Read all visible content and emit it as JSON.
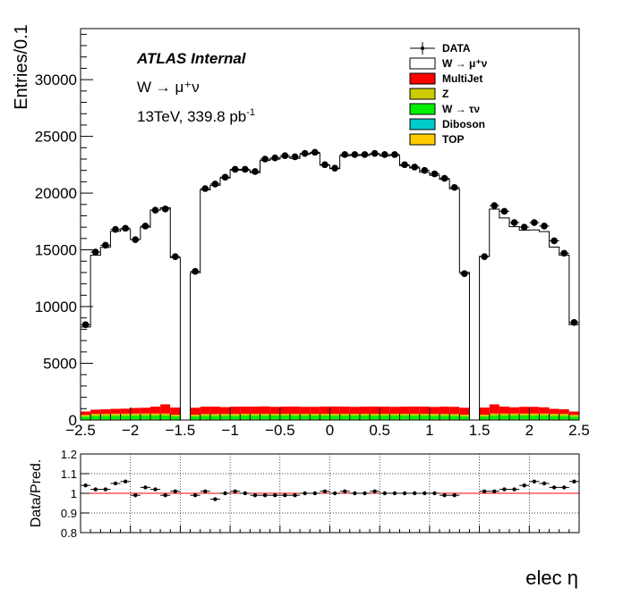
{
  "chart_data": [
    {
      "type": "bar",
      "stacked": true,
      "title": "",
      "xlabel": "elec η",
      "ylabel": "Entries/0.1",
      "xlim": [
        -2.5,
        2.5
      ],
      "ylim": [
        0,
        34500
      ],
      "xticks": [
        "−2.5",
        "−2",
        "−1.5",
        "−1",
        "−0.5",
        "0",
        "0.5",
        "1",
        "1.5",
        "2",
        "2.5"
      ],
      "yticks": [
        "0",
        "5000",
        "10000",
        "15000",
        "20000",
        "25000",
        "30000"
      ],
      "yticks_values": [
        0,
        5000,
        10000,
        15000,
        20000,
        25000,
        30000
      ],
      "annotations": {
        "atlas": "ATLAS Internal",
        "process": "W → μ⁺ν",
        "lumi_prefix": "13TeV, 339.8 pb",
        "lumi_sup": "-1"
      },
      "legend": {
        "position": "top-right",
        "entries": [
          {
            "label": "DATA",
            "type": "marker"
          },
          {
            "label": "W → μ⁺ν",
            "type": "box",
            "color": "#ffffff"
          },
          {
            "label": "MultiJet",
            "type": "box",
            "color": "#ff0000"
          },
          {
            "label": "Z",
            "type": "box",
            "color": "#cccc00"
          },
          {
            "label": "W → τν",
            "type": "box",
            "color": "#00ee00"
          },
          {
            "label": "Diboson",
            "type": "box",
            "color": "#00cccc"
          },
          {
            "label": "TOP",
            "type": "box",
            "color": "#ffcc00"
          }
        ]
      },
      "bin_edges_start": -2.5,
      "bin_width": 0.1,
      "series": [
        {
          "name": "DATA",
          "type": "points",
          "values": [
            8400,
            14800,
            15400,
            16800,
            16900,
            15900,
            17100,
            18500,
            18600,
            14400,
            0,
            13100,
            20400,
            20800,
            21400,
            22100,
            22100,
            21900,
            23000,
            23100,
            23300,
            23200,
            23500,
            23600,
            22500,
            22200,
            23400,
            23400,
            23400,
            23500,
            23400,
            23400,
            22500,
            22300,
            22000,
            21700,
            21300,
            20500,
            12900,
            0,
            14400,
            18900,
            18400,
            17400,
            17000,
            17400,
            17100,
            15800,
            14700,
            8600
          ]
        },
        {
          "name": "W → μ⁺ν",
          "type": "stack",
          "color": "#ffffff",
          "values": [
            7450,
            13600,
            14270,
            15640,
            15770,
            14840,
            15900,
            17310,
            17330,
            13220,
            0,
            11890,
            19100,
            19510,
            20200,
            20860,
            20820,
            20610,
            21660,
            21820,
            21970,
            21860,
            22240,
            22340,
            21260,
            20950,
            22100,
            22150,
            22120,
            22210,
            22090,
            22150,
            21230,
            21010,
            20650,
            20400,
            20030,
            19210,
            11930,
            0,
            13320,
            17200,
            16620,
            15910,
            15560,
            15590,
            15480,
            14250,
            13580,
            7660
          ]
        },
        {
          "name": "MultiJet",
          "type": "stack",
          "color": "#ff0000",
          "values": [
            300,
            380,
            410,
            430,
            450,
            500,
            520,
            620,
            820,
            630,
            0,
            620,
            650,
            650,
            600,
            640,
            640,
            640,
            660,
            620,
            640,
            650,
            620,
            620,
            650,
            650,
            640,
            620,
            640,
            650,
            640,
            620,
            640,
            650,
            640,
            620,
            640,
            640,
            620,
            0,
            630,
            820,
            620,
            560,
            600,
            600,
            560,
            450,
            410,
            300
          ]
        },
        {
          "name": "Z",
          "type": "stack",
          "color": "#cccc00",
          "values": [
            150,
            180,
            180,
            180,
            180,
            180,
            180,
            180,
            180,
            150,
            0,
            150,
            160,
            160,
            160,
            160,
            160,
            160,
            160,
            160,
            160,
            160,
            160,
            160,
            160,
            160,
            160,
            160,
            160,
            160,
            160,
            160,
            160,
            160,
            160,
            160,
            160,
            160,
            150,
            0,
            150,
            180,
            180,
            180,
            180,
            180,
            180,
            180,
            180,
            150
          ]
        },
        {
          "name": "W → τν",
          "type": "stack",
          "color": "#00ee00",
          "values": [
            250,
            300,
            300,
            320,
            320,
            330,
            330,
            330,
            330,
            270,
            0,
            270,
            310,
            310,
            320,
            320,
            330,
            330,
            330,
            330,
            330,
            330,
            330,
            330,
            330,
            330,
            330,
            330,
            330,
            330,
            330,
            330,
            330,
            330,
            330,
            320,
            320,
            310,
            270,
            0,
            270,
            330,
            330,
            330,
            330,
            330,
            330,
            300,
            300,
            250
          ]
        },
        {
          "name": "Diboson",
          "type": "stack",
          "color": "#00cccc",
          "values": [
            10,
            10,
            10,
            10,
            10,
            10,
            10,
            10,
            10,
            10,
            0,
            10,
            10,
            10,
            10,
            10,
            10,
            10,
            10,
            10,
            10,
            10,
            10,
            10,
            10,
            10,
            10,
            10,
            10,
            10,
            10,
            10,
            10,
            10,
            10,
            10,
            10,
            10,
            10,
            0,
            10,
            10,
            10,
            10,
            10,
            10,
            10,
            10,
            10,
            10
          ]
        },
        {
          "name": "TOP",
          "type": "stack",
          "color": "#ffcc00",
          "values": [
            40,
            50,
            50,
            50,
            50,
            50,
            50,
            50,
            50,
            40,
            0,
            40,
            50,
            50,
            50,
            50,
            50,
            50,
            50,
            50,
            50,
            50,
            50,
            50,
            50,
            50,
            50,
            50,
            50,
            50,
            50,
            50,
            50,
            50,
            50,
            50,
            50,
            50,
            40,
            0,
            40,
            50,
            50,
            50,
            50,
            50,
            50,
            50,
            50,
            40
          ]
        }
      ]
    },
    {
      "type": "scatter",
      "title": "",
      "xlabel": "elec η",
      "ylabel": "Data/Pred.",
      "xlim": [
        -2.5,
        2.5
      ],
      "ylim": [
        0.8,
        1.2
      ],
      "yticks": [
        "0.8",
        "0.9",
        "1",
        "1.1",
        "1.2"
      ],
      "yticks_values": [
        0.8,
        0.9,
        1.0,
        1.1,
        1.2
      ],
      "grid": true,
      "reference_line": {
        "value": 1,
        "color": "#ff0000"
      },
      "series": [
        {
          "name": "Data/Pred.",
          "values": [
            1.04,
            1.02,
            1.02,
            1.05,
            1.06,
            0.99,
            1.03,
            1.02,
            0.99,
            1.01,
            null,
            0.99,
            1.01,
            0.97,
            1.0,
            1.01,
            1.0,
            0.99,
            0.99,
            0.99,
            0.99,
            0.99,
            1.0,
            1.0,
            1.01,
            1.0,
            1.01,
            1.0,
            1.0,
            1.01,
            1.0,
            1.0,
            1.0,
            1.0,
            1.0,
            1.0,
            0.99,
            0.99,
            null,
            null,
            1.01,
            1.01,
            1.02,
            1.02,
            1.04,
            1.06,
            1.05,
            1.03,
            1.03,
            1.06
          ]
        }
      ]
    }
  ]
}
